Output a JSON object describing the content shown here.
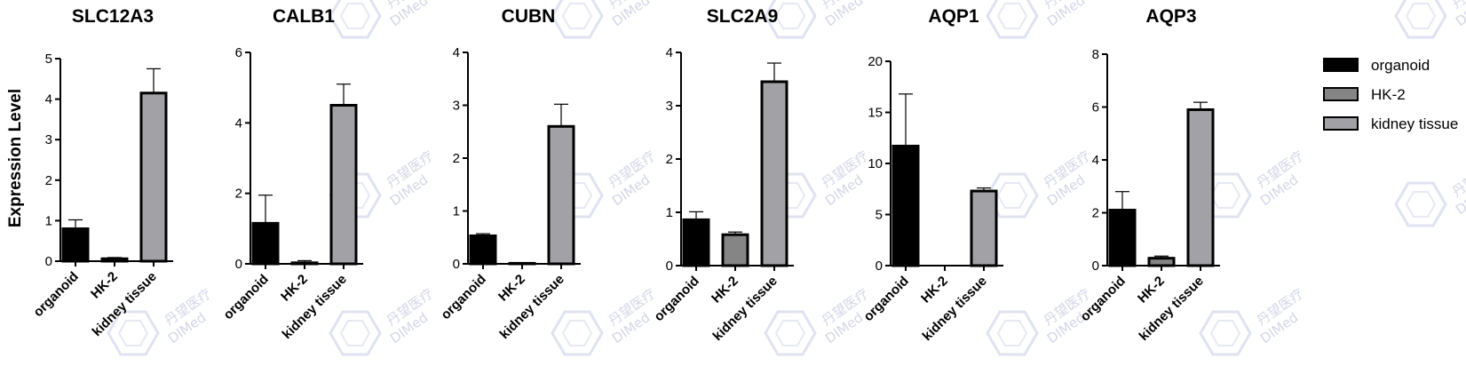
{
  "chart_data": {
    "type": "bar",
    "ylabel": "Expression Level",
    "categories": [
      "organoid",
      "HK-2",
      "kidney tissue"
    ],
    "colors": {
      "organoid": "#000000",
      "HK-2": "#858585",
      "kidney tissue": "#a2a2a6"
    },
    "legend": {
      "placement": "right",
      "entries": [
        "organoid",
        "HK-2",
        "kidney tissue"
      ]
    },
    "panels": [
      {
        "title": "SLC12A3",
        "ylim": [
          0,
          5
        ],
        "ticks": [
          "0",
          "1",
          "2",
          "3",
          "4",
          "5"
        ],
        "values": [
          0.8,
          0.06,
          4.15
        ],
        "errors": [
          0.22,
          0.03,
          0.6
        ]
      },
      {
        "title": "CALB1",
        "ylim": [
          0,
          6
        ],
        "ticks": [
          "0",
          "2",
          "4",
          "6"
        ],
        "values": [
          1.15,
          0.03,
          4.5
        ],
        "errors": [
          0.8,
          0.06,
          0.6
        ]
      },
      {
        "title": "CUBN",
        "ylim": [
          0,
          4
        ],
        "ticks": [
          "0",
          "1",
          "2",
          "3",
          "4"
        ],
        "values": [
          0.53,
          0.01,
          2.6
        ],
        "errors": [
          0.04,
          0.01,
          0.42
        ]
      },
      {
        "title": "SLC2A9",
        "ylim": [
          0,
          4
        ],
        "ticks": [
          "0",
          "1",
          "2",
          "3",
          "4"
        ],
        "values": [
          0.86,
          0.58,
          3.45
        ],
        "errors": [
          0.15,
          0.05,
          0.35
        ]
      },
      {
        "title": "AQP1",
        "ylim": [
          0,
          20
        ],
        "ticks": [
          "0",
          "5",
          "10",
          "15",
          "20"
        ],
        "values": [
          11.7,
          0.0,
          7.3
        ],
        "errors": [
          5.1,
          0.0,
          0.3
        ]
      },
      {
        "title": "AQP3",
        "ylim": [
          0,
          8
        ],
        "ticks": [
          "0",
          "2",
          "4",
          "6",
          "8"
        ],
        "values": [
          2.1,
          0.28,
          5.9
        ],
        "errors": [
          0.7,
          0.08,
          0.28
        ]
      }
    ],
    "grid": false
  },
  "watermark": {
    "cn": "丹望医疗",
    "en": "DIMed"
  }
}
